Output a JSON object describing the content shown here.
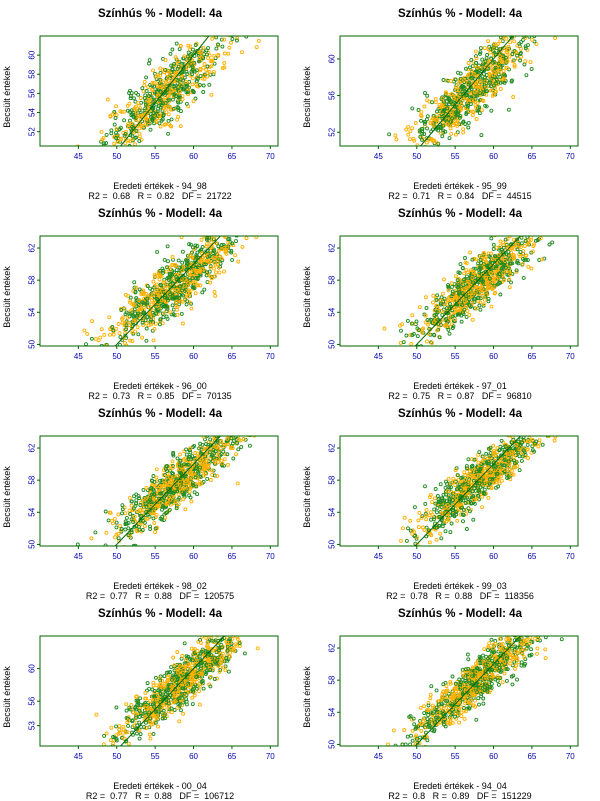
{
  "colors": {
    "frame": "#006400",
    "regression_line": "#006400",
    "tick_labels": "#0000aa",
    "series_green": "#228b22",
    "series_orange": "#ffb000"
  },
  "chart_data": [
    {
      "type": "scatter",
      "title": "Színhús % - Modell: 4a",
      "xlabel": "Eredeti értékek - 94_98",
      "ylabel": "Becsült értékek",
      "stats": "R2 =  0.68   R =  0.82   DF =  21722",
      "xlim": [
        40,
        71
      ],
      "ylim": [
        50.5,
        62.0
      ],
      "xticks": [
        45,
        50,
        55,
        60,
        65,
        70
      ],
      "yticks": [
        52,
        54,
        56,
        58,
        60
      ],
      "points": {
        "x_mean": 56.5,
        "x_sd": 4.0,
        "slope": 0.68,
        "intercept": 17.8,
        "resid_sd": 1.6,
        "count": 700
      },
      "series": [
        {
          "color": "#228b22"
        },
        {
          "color": "#ffb000"
        }
      ]
    },
    {
      "type": "scatter",
      "title": "Színhús % - Modell: 4a",
      "xlabel": "Eredeti értékek - 95_99",
      "ylabel": "Becsült értékek",
      "stats": "R2 =  0.71   R =  0.84   DF =  44515",
      "xlim": [
        40,
        71
      ],
      "ylim": [
        50.5,
        62.5
      ],
      "xticks": [
        45,
        50,
        55,
        60,
        65,
        70
      ],
      "yticks": [
        52,
        56,
        60
      ],
      "points": {
        "x_mean": 57.0,
        "x_sd": 4.0,
        "slope": 0.72,
        "intercept": 15.5,
        "resid_sd": 1.6,
        "count": 800
      },
      "series": [
        {
          "color": "#228b22"
        },
        {
          "color": "#ffb000"
        }
      ]
    },
    {
      "type": "scatter",
      "title": "Színhús % - Modell: 4a",
      "xlabel": "Eredeti értékek - 96_00",
      "ylabel": "Becsült értékek",
      "stats": "R2 =  0.73   R =  0.85   DF =  70135",
      "xlim": [
        40,
        71
      ],
      "ylim": [
        49.8,
        63.5
      ],
      "xticks": [
        45,
        50,
        55,
        60,
        65,
        70
      ],
      "yticks": [
        50,
        54,
        58,
        62
      ],
      "points": {
        "x_mean": 57.5,
        "x_sd": 4.2,
        "slope": 0.73,
        "intercept": 15.3,
        "resid_sd": 1.7,
        "count": 850
      },
      "series": [
        {
          "color": "#228b22"
        },
        {
          "color": "#ffb000"
        }
      ]
    },
    {
      "type": "scatter",
      "title": "Színhús % - Modell: 4a",
      "xlabel": "Eredeti értékek - 97_01",
      "ylabel": "Becsült értékek",
      "stats": "R2 =  0.75   R =  0.87   DF =  96810",
      "xlim": [
        40,
        71
      ],
      "ylim": [
        49.8,
        63.5
      ],
      "xticks": [
        45,
        50,
        55,
        60,
        65,
        70
      ],
      "yticks": [
        50,
        54,
        58,
        62
      ],
      "points": {
        "x_mean": 57.8,
        "x_sd": 4.2,
        "slope": 0.75,
        "intercept": 14.2,
        "resid_sd": 1.6,
        "count": 900
      },
      "series": [
        {
          "color": "#228b22"
        },
        {
          "color": "#ffb000"
        }
      ]
    },
    {
      "type": "scatter",
      "title": "Színhús % - Modell: 4a",
      "xlabel": "Eredeti értékek - 98_02",
      "ylabel": "Becsült értékek",
      "stats": "R2 =  0.77   R =  0.88   DF =  120575",
      "xlim": [
        40,
        71
      ],
      "ylim": [
        49.8,
        63.5
      ],
      "xticks": [
        45,
        50,
        55,
        60,
        65,
        70
      ],
      "yticks": [
        50,
        54,
        58,
        62
      ],
      "points": {
        "x_mean": 58.0,
        "x_sd": 4.2,
        "slope": 0.77,
        "intercept": 13.2,
        "resid_sd": 1.5,
        "count": 900
      },
      "series": [
        {
          "color": "#228b22"
        },
        {
          "color": "#ffb000"
        }
      ]
    },
    {
      "type": "scatter",
      "title": "Színhús % - Modell: 4a",
      "xlabel": "Eredeti értékek - 99_03",
      "ylabel": "Becsült értékek",
      "stats": "R2 =  0.78   R =  0.88   DF =  118356",
      "xlim": [
        40,
        71
      ],
      "ylim": [
        49.8,
        63.5
      ],
      "xticks": [
        45,
        50,
        55,
        60,
        65,
        70
      ],
      "yticks": [
        50,
        54,
        58,
        62
      ],
      "points": {
        "x_mean": 58.2,
        "x_sd": 4.2,
        "slope": 0.78,
        "intercept": 12.7,
        "resid_sd": 1.5,
        "count": 900
      },
      "series": [
        {
          "color": "#228b22"
        },
        {
          "color": "#ffb000"
        }
      ]
    },
    {
      "type": "scatter",
      "title": "Színhús % - Modell: 4a",
      "xlabel": "Eredeti értékek - 00_04",
      "ylabel": "Becsült értékek",
      "stats": "R2 =  0.77   R =  0.88   DF =  106712",
      "xlim": [
        40,
        71
      ],
      "ylim": [
        50.5,
        64.0
      ],
      "xticks": [
        45,
        50,
        55,
        60,
        65,
        70
      ],
      "yticks": [
        53,
        56,
        60
      ],
      "points": {
        "x_mean": 58.3,
        "x_sd": 4.2,
        "slope": 0.77,
        "intercept": 13.3,
        "resid_sd": 1.5,
        "count": 900
      },
      "series": [
        {
          "color": "#228b22"
        },
        {
          "color": "#ffb000"
        }
      ]
    },
    {
      "type": "scatter",
      "title": "Színhús % - Modell: 4a",
      "xlabel": "Eredeti értékek - 94_04",
      "ylabel": "Becsült értékek",
      "stats": "R2 =  0.8   R =  0.89   DF =  151229",
      "xlim": [
        40,
        71
      ],
      "ylim": [
        49.8,
        63.5
      ],
      "xticks": [
        45,
        50,
        55,
        60,
        65,
        70
      ],
      "yticks": [
        50,
        54,
        58,
        62
      ],
      "points": {
        "x_mean": 57.8,
        "x_sd": 4.3,
        "slope": 0.8,
        "intercept": 11.6,
        "resid_sd": 1.4,
        "count": 950
      },
      "series": [
        {
          "color": "#228b22"
        },
        {
          "color": "#ffb000"
        }
      ]
    }
  ]
}
